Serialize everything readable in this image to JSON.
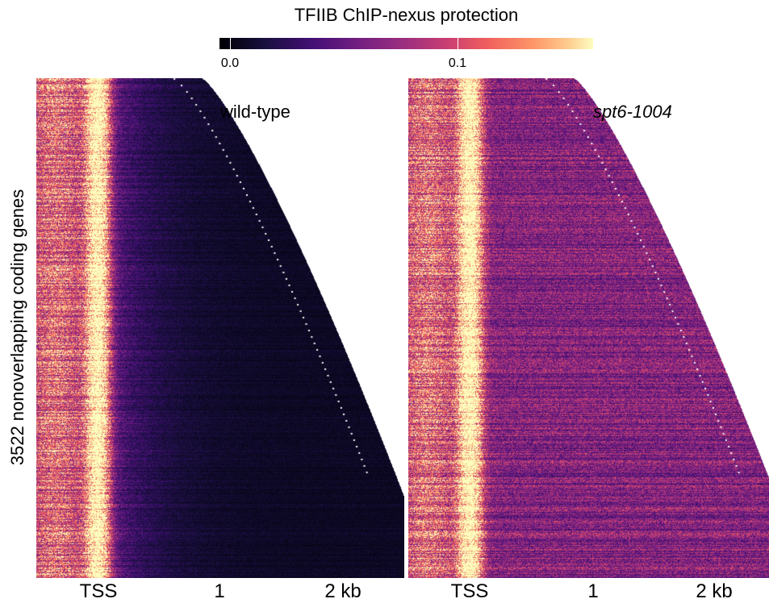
{
  "colorbar": {
    "title": "TFIIB ChIP-nexus protection",
    "ticks": [
      {
        "value": 0.0,
        "label": "0.0"
      },
      {
        "value": 0.1,
        "label": "0.1"
      }
    ],
    "range": [
      0.0,
      0.16
    ],
    "colormap": "inferno/magma",
    "colors": [
      "#000004",
      "#180f3d",
      "#440f76",
      "#721f81",
      "#9e2f7f",
      "#cd4071",
      "#f1605d",
      "#fd9668",
      "#feca8d",
      "#fcfdbf"
    ]
  },
  "y_axis": {
    "label": "3522 nonoverlapping coding genes"
  },
  "chart_data": {
    "type": "heatmap",
    "y_label": "3522 nonoverlapping coding genes",
    "n_rows": 3522,
    "x_ticks": [
      {
        "value": 0,
        "label": "TSS"
      },
      {
        "value": 1,
        "label": "1"
      },
      {
        "value": 2,
        "label": "2 kb"
      }
    ],
    "x_range_kb": [
      -0.5,
      2.5
    ],
    "colorbar_title": "TFIIB ChIP-nexus protection",
    "annotation": "white dotted line marks gene 3' ends (cleavage/polyadenylation sites)",
    "panels": [
      {
        "name": "wild-type",
        "italic": false,
        "tss_signal": 0.15,
        "genebody_signal": 0.01
      },
      {
        "name": "spt6-1004",
        "italic": true,
        "tss_signal": 0.15,
        "genebody_signal": 0.06
      }
    ]
  }
}
